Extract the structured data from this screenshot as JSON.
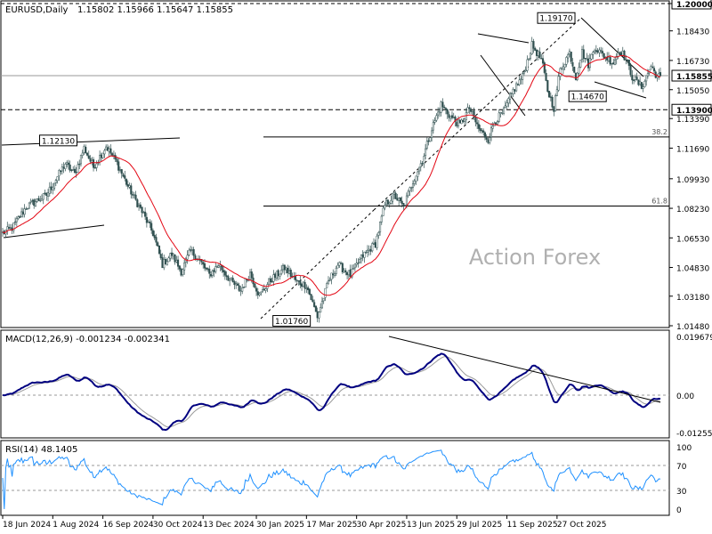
{
  "chart_data": [
    {
      "type": "candlestick",
      "title": "EURUSD,Daily",
      "ohlc_text": "1.15802 1.15966 1.15647 1.15855",
      "last_close": 1.15855,
      "y_ticks": [
        "1.20000",
        "1.18430",
        "1.16730",
        "1.15050",
        "1.13390",
        "1.11690",
        "1.09930",
        "1.08230",
        "1.06530",
        "1.04830",
        "1.03180",
        "1.01480"
      ],
      "price_labels": [
        {
          "text": "1.19170",
          "price": 1.1917,
          "day": 370
        },
        {
          "text": "1.14670",
          "price": 1.1467,
          "day": 390
        },
        {
          "text": "1.12130",
          "price": 1.1213,
          "day": 52
        },
        {
          "text": "1.01760",
          "price": 1.0176,
          "day": 201
        }
      ],
      "horizontal_levels": [
        {
          "price": 1.139,
          "label": "1.13900",
          "style": "dashed"
        },
        {
          "price": 1.15855,
          "label": "1.15855",
          "style": "solid"
        }
      ],
      "fibonacci": [
        {
          "label": "38.2",
          "price": 1.1233
        },
        {
          "label": "61.8",
          "price": 1.0836
        }
      ],
      "watermark": "Action Forex",
      "x_labels": [
        "18 Jun 2024",
        "1 Aug 2024",
        "16 Sep 2024",
        "30 Oct 2024",
        "13 Dec 2024",
        "30 Jan 2025",
        "17 Mar 2025",
        "30 Apr 2025",
        "13 Jun 2025",
        "29 Jul 2025",
        "11 Sep 2025",
        "27 Oct 2025"
      ],
      "x_start_date": "2024-06-18",
      "price_anchors": [
        [
          0,
          1.068
        ],
        [
          6,
          1.071
        ],
        [
          15,
          1.083
        ],
        [
          28,
          1.09
        ],
        [
          40,
          1.108
        ],
        [
          46,
          1.102
        ],
        [
          52,
          1.117
        ],
        [
          58,
          1.106
        ],
        [
          66,
          1.118
        ],
        [
          72,
          1.11
        ],
        [
          80,
          1.095
        ],
        [
          88,
          1.082
        ],
        [
          96,
          1.068
        ],
        [
          102,
          1.05
        ],
        [
          108,
          1.056
        ],
        [
          114,
          1.046
        ],
        [
          120,
          1.058
        ],
        [
          126,
          1.052
        ],
        [
          132,
          1.044
        ],
        [
          138,
          1.05
        ],
        [
          146,
          1.04
        ],
        [
          152,
          1.035
        ],
        [
          158,
          1.045
        ],
        [
          164,
          1.032
        ],
        [
          170,
          1.04
        ],
        [
          180,
          1.048
        ],
        [
          188,
          1.04
        ],
        [
          194,
          1.038
        ],
        [
          201,
          1.02
        ],
        [
          208,
          1.04
        ],
        [
          214,
          1.05
        ],
        [
          222,
          1.044
        ],
        [
          230,
          1.055
        ],
        [
          238,
          1.062
        ],
        [
          244,
          1.084
        ],
        [
          250,
          1.09
        ],
        [
          256,
          1.083
        ],
        [
          262,
          1.098
        ],
        [
          268,
          1.11
        ],
        [
          274,
          1.128
        ],
        [
          280,
          1.142
        ],
        [
          286,
          1.135
        ],
        [
          292,
          1.13
        ],
        [
          298,
          1.14
        ],
        [
          304,
          1.128
        ],
        [
          310,
          1.122
        ],
        [
          314,
          1.132
        ],
        [
          320,
          1.138
        ],
        [
          326,
          1.15
        ],
        [
          332,
          1.158
        ],
        [
          338,
          1.176
        ],
        [
          344,
          1.168
        ],
        [
          348,
          1.15
        ],
        [
          352,
          1.14
        ],
        [
          356,
          1.162
        ],
        [
          362,
          1.172
        ],
        [
          366,
          1.158
        ],
        [
          370,
          1.172
        ],
        [
          374,
          1.165
        ],
        [
          378,
          1.175
        ],
        [
          384,
          1.17
        ],
        [
          390,
          1.166
        ],
        [
          394,
          1.174
        ],
        [
          398,
          1.168
        ],
        [
          402,
          1.158
        ],
        [
          408,
          1.152
        ],
        [
          414,
          1.164
        ],
        [
          418,
          1.158
        ],
        [
          420,
          1.15855
        ]
      ],
      "moving_average": {
        "color": "#e30613"
      },
      "macd": {
        "label": "MACD(12,26,9) -0.001234 -0.002341",
        "macd": -0.001234,
        "signal": -0.002341,
        "y_ticks": [
          "0.019679",
          "0.00",
          "-0.012552"
        ],
        "macd_color": "#000080",
        "signal_color": "#9a9a9a"
      },
      "rsi": {
        "label": "RSI(14) 48.1405",
        "value": 48.1405,
        "y_ticks": [
          "100",
          "70",
          "30",
          "0"
        ],
        "color": "#1e90ff"
      }
    }
  ]
}
